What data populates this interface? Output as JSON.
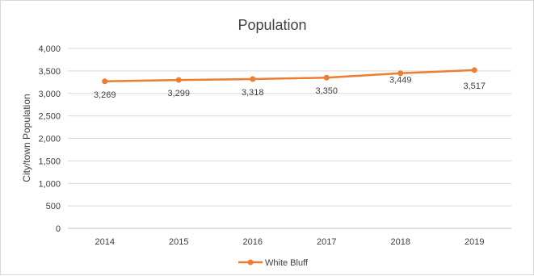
{
  "chart_data": {
    "type": "line",
    "title": "Population",
    "ylabel": "City/town Population",
    "xlabel": "",
    "categories": [
      "2014",
      "2015",
      "2016",
      "2017",
      "2018",
      "2019"
    ],
    "ylim": [
      0,
      4000
    ],
    "yticks": [
      0,
      500,
      1000,
      1500,
      2000,
      2500,
      3000,
      3500,
      4000
    ],
    "ytick_labels": [
      "0",
      "500",
      "1,000",
      "1,500",
      "2,000",
      "2,500",
      "3,000",
      "3,500",
      "4,000"
    ],
    "series": [
      {
        "name": "White Bluff",
        "color": "#ED7D31",
        "values": [
          3269,
          3299,
          3318,
          3350,
          3449,
          3517
        ],
        "labels": [
          "3,269",
          "3,299",
          "3,318",
          "3,350",
          "3,449",
          "3,517"
        ]
      }
    ],
    "grid": "horizontal",
    "legend": "bottom-center"
  }
}
